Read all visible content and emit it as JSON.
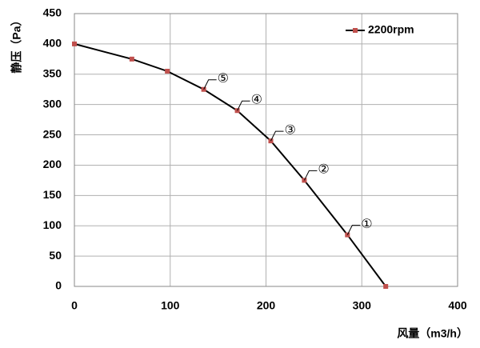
{
  "chart_data": {
    "type": "line",
    "x_label": "风量（m3/h）",
    "y_label": "静压（Pa）",
    "series": [
      {
        "name": "2200rpm",
        "color": "#000000",
        "marker_color": "#c0504d",
        "x": [
          0,
          60,
          97,
          135,
          170,
          205,
          240,
          285,
          325
        ],
        "values": [
          400,
          375,
          355,
          325,
          290,
          240,
          175,
          85,
          0
        ]
      }
    ],
    "annotations": [
      "①",
      "②",
      "③",
      "④",
      "⑤"
    ],
    "xlim": [
      0,
      400
    ],
    "xticks": [
      0,
      100,
      200,
      300,
      400
    ],
    "ylim": [
      0,
      450
    ],
    "yticks": [
      0,
      50,
      100,
      150,
      200,
      250,
      300,
      350,
      400,
      450
    ],
    "grid": true,
    "legend": "top-right"
  }
}
